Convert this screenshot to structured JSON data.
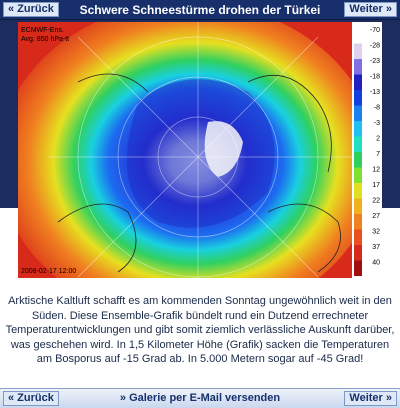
{
  "header": {
    "back": "« Zurück",
    "title": "Schwere Schneestürme drohen der Türkei",
    "next": "Weiter »"
  },
  "image": {
    "source": "ECMWF-Ens.",
    "variable": "Avg. 850 hPa-tt",
    "timestamp": "2008-02-17 12:00",
    "scale": [
      -70,
      -28,
      -23,
      -18,
      -13,
      -8,
      -3,
      2,
      7,
      12,
      17,
      22,
      27,
      32,
      37,
      40
    ]
  },
  "caption": "Arktische Kaltluft schafft es am kommenden Sonntag ungewöhnlich weit in den Süden. Diese Ensemble-Grafik bündelt rund ein Dutzend errechneter Temperaturentwicklungen und gibt somit ziemlich verlässliche Auskunft darüber, was geschehen wird. In 1,5 Kilometer Höhe (Grafik) sacken die Temperaturen am Bosporus auf -15 Grad ab. In 5.000 Metern sogar auf -45 Grad!",
  "footer": {
    "back": "« Zurück",
    "email": "» Galerie per E-Mail versenden",
    "next": "Weiter »"
  }
}
